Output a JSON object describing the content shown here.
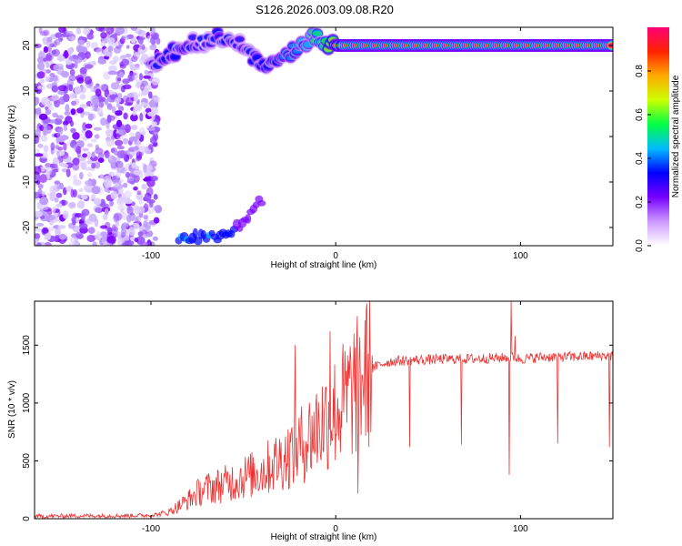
{
  "title": "S126.2026.003.09.08.R20",
  "chart_data": [
    {
      "type": "heatmap",
      "xlabel": "Height of straight line (km)",
      "ylabel": "Frequency (Hz)",
      "xlim": [
        -163,
        150
      ],
      "ylim": [
        -24,
        24
      ],
      "xticks": [
        -100,
        0,
        100
      ],
      "yticks": [
        -20,
        -10,
        0,
        10,
        20
      ],
      "colorbar": {
        "label": "Normalized spectral amplitude",
        "range": [
          0,
          1
        ],
        "ticks": [
          "0.0",
          "0.2",
          "0.4",
          "0.6",
          "0.8"
        ],
        "colors": [
          "#ffffff",
          "#cc99ff",
          "#7700ff",
          "#0000ff",
          "#00bbff",
          "#00ff44",
          "#ccff00",
          "#ffaa00",
          "#ff2200",
          "#ff0077"
        ]
      },
      "ridge": {
        "x": [
          -100,
          -90,
          -80,
          -70,
          -60,
          -50,
          -40,
          -30,
          -20,
          -15,
          -10,
          -5,
          0,
          10,
          20,
          50,
          100,
          150
        ],
        "frequency_hz": [
          15,
          18,
          20,
          21,
          22,
          20,
          16,
          18,
          19,
          21,
          22,
          20,
          20,
          20,
          20,
          20,
          20,
          20
        ],
        "amplitude": [
          0.3,
          0.35,
          0.35,
          0.3,
          0.35,
          0.3,
          0.35,
          0.4,
          0.45,
          0.5,
          0.55,
          0.6,
          0.75,
          0.9,
          0.95,
          0.95,
          0.95,
          0.95
        ]
      },
      "low_band": {
        "x": [
          -85,
          -75,
          -60,
          -50,
          -40
        ],
        "frequency_hz": [
          -23,
          -22,
          -22,
          -19,
          -14
        ],
        "amplitude": [
          0.35,
          0.3,
          0.3,
          0.2,
          0.15
        ]
      },
      "noise_region_x": [
        -163,
        -100
      ]
    },
    {
      "type": "line",
      "xlabel": "Height of straight line (km)",
      "ylabel": "SNR (10 * v/v)",
      "xlim": [
        -163,
        150
      ],
      "ylim": [
        0,
        1880
      ],
      "xticks": [
        -100,
        0,
        100
      ],
      "yticks": [
        0,
        500,
        1000,
        1500
      ],
      "color": "#ee3333",
      "series": [
        {
          "x": [
            -163,
            -140,
            -120,
            -100,
            -95,
            -90,
            -85,
            -80,
            -75,
            -70,
            -65,
            -60,
            -55,
            -50,
            -45,
            -40,
            -35,
            -30,
            -25,
            -20,
            -15,
            -10,
            -5,
            0,
            5,
            10,
            15,
            20,
            25,
            30,
            40,
            50,
            60,
            70,
            80,
            90,
            95,
            100,
            110,
            120,
            130,
            140,
            150
          ],
          "values": [
            20,
            25,
            25,
            30,
            40,
            60,
            110,
            160,
            220,
            260,
            280,
            300,
            330,
            360,
            380,
            410,
            460,
            510,
            560,
            620,
            700,
            790,
            870,
            930,
            1020,
            1120,
            1230,
            1300,
            1340,
            1360,
            1370,
            1375,
            1380,
            1380,
            1385,
            1390,
            1400,
            1380,
            1395,
            1400,
            1400,
            1405,
            1410
          ]
        }
      ],
      "spikes": [
        {
          "x": -22,
          "value": 1500
        },
        {
          "x": -3,
          "value": 1620
        },
        {
          "x": 95,
          "value": 1880
        },
        {
          "x": 97,
          "value": 1580
        }
      ],
      "dips": [
        {
          "x": 12,
          "value": 220
        },
        {
          "x": 40,
          "value": 620
        },
        {
          "x": 68,
          "value": 640
        },
        {
          "x": 94,
          "value": 380
        },
        {
          "x": 120,
          "value": 650
        },
        {
          "x": 148,
          "value": 620
        }
      ]
    }
  ]
}
